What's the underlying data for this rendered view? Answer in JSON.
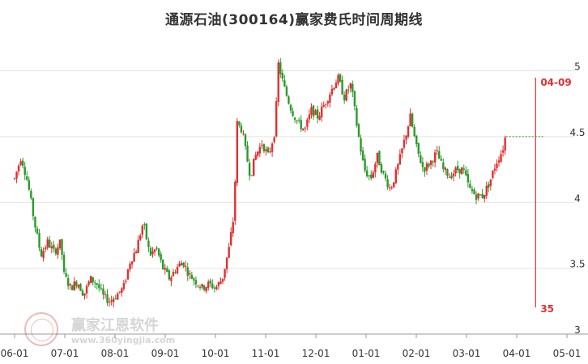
{
  "chart_data": {
    "type": "candlestick",
    "title": "通源石油(300164)赢家费氏时间周期线",
    "x_tick_labels": [
      "06-01",
      "07-01",
      "08-01",
      "09-01",
      "10-01",
      "11-01",
      "12-01",
      "01-01",
      "02-01",
      "03-01",
      "04-01",
      "05-01"
    ],
    "y_tick_labels": [
      "3",
      "3.5",
      "4",
      "4.5",
      "5"
    ],
    "ylim": [
      3,
      5.2
    ],
    "grid": true,
    "x_range_days": [
      0,
      335
    ],
    "series": [
      {
        "type": "candles",
        "anchors": [
          [
            0,
            4.18
          ],
          [
            4,
            4.35
          ],
          [
            8,
            4.15
          ],
          [
            12,
            3.85
          ],
          [
            16,
            3.6
          ],
          [
            20,
            3.7
          ],
          [
            24,
            3.62
          ],
          [
            28,
            3.7
          ],
          [
            30,
            3.45
          ],
          [
            34,
            3.35
          ],
          [
            38,
            3.4
          ],
          [
            42,
            3.3
          ],
          [
            46,
            3.42
          ],
          [
            50,
            3.38
          ],
          [
            54,
            3.28
          ],
          [
            58,
            3.25
          ],
          [
            62,
            3.3
          ],
          [
            66,
            3.35
          ],
          [
            70,
            3.55
          ],
          [
            74,
            3.65
          ],
          [
            78,
            3.85
          ],
          [
            82,
            3.6
          ],
          [
            86,
            3.65
          ],
          [
            90,
            3.5
          ],
          [
            94,
            3.42
          ],
          [
            98,
            3.5
          ],
          [
            102,
            3.55
          ],
          [
            106,
            3.45
          ],
          [
            110,
            3.4
          ],
          [
            114,
            3.35
          ],
          [
            118,
            3.38
          ],
          [
            122,
            3.35
          ],
          [
            126,
            3.42
          ],
          [
            130,
            3.65
          ],
          [
            133,
            3.9
          ],
          [
            135,
            4.6
          ],
          [
            138,
            4.55
          ],
          [
            140,
            4.4
          ],
          [
            143,
            4.2
          ],
          [
            146,
            4.35
          ],
          [
            150,
            4.45
          ],
          [
            154,
            4.35
          ],
          [
            158,
            4.55
          ],
          [
            160,
            5.05
          ],
          [
            164,
            4.85
          ],
          [
            168,
            4.7
          ],
          [
            172,
            4.6
          ],
          [
            176,
            4.55
          ],
          [
            180,
            4.7
          ],
          [
            184,
            4.65
          ],
          [
            188,
            4.75
          ],
          [
            192,
            4.85
          ],
          [
            196,
            4.95
          ],
          [
            200,
            4.8
          ],
          [
            204,
            4.9
          ],
          [
            208,
            4.55
          ],
          [
            212,
            4.25
          ],
          [
            216,
            4.18
          ],
          [
            220,
            4.35
          ],
          [
            224,
            4.2
          ],
          [
            228,
            4.1
          ],
          [
            232,
            4.25
          ],
          [
            236,
            4.45
          ],
          [
            240,
            4.65
          ],
          [
            244,
            4.4
          ],
          [
            248,
            4.25
          ],
          [
            252,
            4.3
          ],
          [
            256,
            4.38
          ],
          [
            260,
            4.25
          ],
          [
            264,
            4.2
          ],
          [
            268,
            4.25
          ],
          [
            272,
            4.25
          ],
          [
            276,
            4.1
          ],
          [
            280,
            4.05
          ],
          [
            284,
            4.05
          ],
          [
            288,
            4.15
          ],
          [
            292,
            4.3
          ],
          [
            296,
            4.4
          ],
          [
            298,
            4.52
          ]
        ],
        "volatility": 0.045
      },
      {
        "type": "projection_line",
        "value": 4.5,
        "from_day": 298,
        "to_day": 321,
        "color": "#2a9a2a"
      }
    ],
    "annotations": [
      {
        "type": "cycle_line",
        "day": 316,
        "label_top": "04-09",
        "label_bottom": "35",
        "color": "#e03030"
      }
    ],
    "colors": {
      "up": "#e03030",
      "down": "#2a9a2a",
      "grid": "#e4e4e4",
      "axis": "#999999",
      "text": "#333333"
    }
  },
  "watermark": {
    "name": "赢家江恩软件",
    "url": "www.360yingjia.com"
  }
}
